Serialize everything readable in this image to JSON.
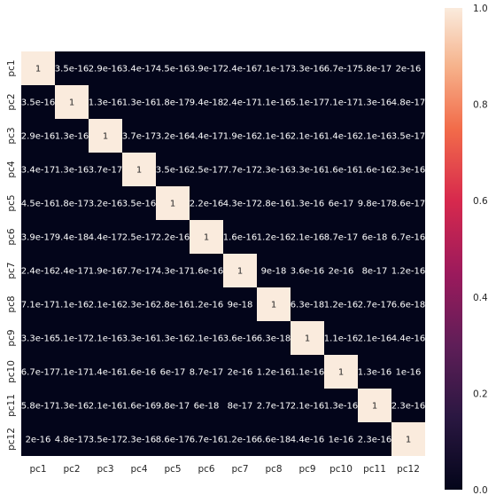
{
  "chart_data": {
    "type": "heatmap",
    "title": "",
    "xlabel": "",
    "ylabel": "",
    "x_categories": [
      "pc1",
      "pc2",
      "pc3",
      "pc4",
      "pc5",
      "pc6",
      "pc7",
      "pc8",
      "pc9",
      "pc10",
      "pc11",
      "pc12"
    ],
    "y_categories": [
      "pc1",
      "pc2",
      "pc3",
      "pc4",
      "pc5",
      "pc6",
      "pc7",
      "pc8",
      "pc9",
      "pc10",
      "pc11",
      "pc12"
    ],
    "annotations": [
      [
        "1",
        "3.5e-16",
        "2.9e-16",
        "3.4e-17",
        "4.5e-16",
        "3.9e-17",
        "2.4e-16",
        "7.1e-17",
        "3.3e-16",
        "6.7e-17",
        "5.8e-17",
        "2e-16"
      ],
      [
        "3.5e-16",
        "1",
        "1.3e-16",
        "1.3e-16",
        "1.8e-17",
        "9.4e-18",
        "2.4e-17",
        "1.1e-16",
        "5.1e-17",
        "7.1e-17",
        "1.3e-16",
        "4.8e-17"
      ],
      [
        "2.9e-16",
        "1.3e-16",
        "1",
        "3.7e-17",
        "3.2e-16",
        "4.4e-17",
        "1.9e-16",
        "2.1e-16",
        "2.1e-16",
        "1.4e-16",
        "2.1e-16",
        "3.5e-17"
      ],
      [
        "3.4e-17",
        "1.3e-16",
        "3.7e-17",
        "1",
        "3.5e-16",
        "2.5e-17",
        "7.7e-17",
        "2.3e-16",
        "3.3e-16",
        "1.6e-16",
        "1.6e-16",
        "2.3e-16"
      ],
      [
        "4.5e-16",
        "1.8e-17",
        "3.2e-16",
        "3.5e-16",
        "1",
        "2.2e-16",
        "4.3e-17",
        "2.8e-16",
        "1.3e-16",
        "6e-17",
        "9.8e-17",
        "8.6e-17"
      ],
      [
        "3.9e-17",
        "9.4e-18",
        "4.4e-17",
        "2.5e-17",
        "2.2e-16",
        "1",
        "1.6e-16",
        "1.2e-16",
        "2.1e-16",
        "8.7e-17",
        "6e-18",
        "6.7e-16"
      ],
      [
        "2.4e-16",
        "2.4e-17",
        "1.9e-16",
        "7.7e-17",
        "4.3e-17",
        "1.6e-16",
        "1",
        "9e-18",
        "3.6e-16",
        "2e-16",
        "8e-17",
        "1.2e-16"
      ],
      [
        "7.1e-17",
        "1.1e-16",
        "2.1e-16",
        "2.3e-16",
        "2.8e-16",
        "1.2e-16",
        "9e-18",
        "1",
        "6.3e-18",
        "1.2e-16",
        "2.7e-17",
        "6.6e-18"
      ],
      [
        "3.3e-16",
        "5.1e-17",
        "2.1e-16",
        "3.3e-16",
        "1.3e-16",
        "2.1e-16",
        "3.6e-16",
        "6.3e-18",
        "1",
        "1.1e-16",
        "2.1e-16",
        "4.4e-16"
      ],
      [
        "6.7e-17",
        "7.1e-17",
        "1.4e-16",
        "1.6e-16",
        "6e-17",
        "8.7e-17",
        "2e-16",
        "1.2e-16",
        "1.1e-16",
        "1",
        "1.3e-16",
        "1e-16"
      ],
      [
        "5.8e-17",
        "1.3e-16",
        "2.1e-16",
        "1.6e-16",
        "9.8e-17",
        "6e-18",
        "8e-17",
        "2.7e-17",
        "2.1e-16",
        "1.3e-16",
        "1",
        "2.3e-16"
      ],
      [
        "2e-16",
        "4.8e-17",
        "3.5e-17",
        "2.3e-16",
        "8.6e-17",
        "6.7e-16",
        "1.2e-16",
        "6.6e-18",
        "4.4e-16",
        "1e-16",
        "2.3e-16",
        "1"
      ]
    ],
    "colorbar": {
      "range": [
        0,
        1
      ],
      "ticks": [
        "0.0",
        "0.2",
        "0.4",
        "0.6",
        "0.8",
        "1.0"
      ],
      "colormap": "rocket",
      "low_color": "#03051a",
      "high_color": "#faebdd"
    },
    "annotate_cells": true
  }
}
